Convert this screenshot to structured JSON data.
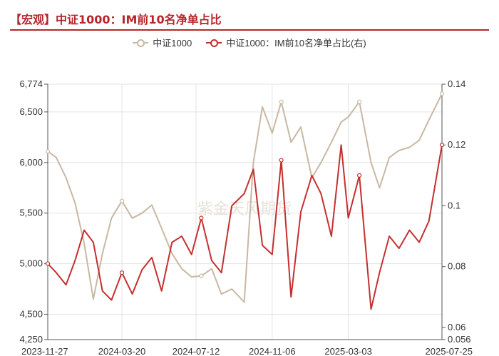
{
  "title": "【宏观】中证1000：IM前10名净单占比",
  "colors": {
    "accent": "#b7262b",
    "series_index": "#c8b8a4",
    "series_ratio": "#c62f2f"
  },
  "legend": [
    {
      "label": "中证1000",
      "color": "#c8b8a4"
    },
    {
      "label": "中证1000：IM前10名净单占比(右)",
      "color": "#c62f2f"
    }
  ],
  "watermark": "紫金天风期货",
  "chart_data": {
    "type": "line",
    "title": "【宏观】中证1000：IM前10名净单占比",
    "x_range": [
      "2023-11-27",
      "2025-07-25"
    ],
    "x_ticks": [
      "2023-11-27",
      "2024-03-20",
      "2024-07-12",
      "2024-11-06",
      "2025-03-03",
      "2025-07-25"
    ],
    "y_left": {
      "min": 4250,
      "max": 6774,
      "ticks": [
        4250,
        4500,
        5000,
        5500,
        6000,
        6500,
        6774
      ],
      "tick_labels": [
        "4,250",
        "4,500",
        "5,000",
        "5,500",
        "6,000",
        "6,500",
        "6,774"
      ]
    },
    "y_right": {
      "min": 0.056,
      "max": 0.14,
      "ticks": [
        0.056,
        0.06,
        0.08,
        0.1,
        0.12,
        0.14
      ],
      "tick_labels": [
        "0.056",
        "0.06",
        "0.08",
        "0.1",
        "0.12",
        "0.14"
      ]
    },
    "grid": true,
    "series": [
      {
        "name": "中证1000",
        "axis": "left",
        "color": "#c8b8a4",
        "x": [
          "2023-11-27",
          "2023-12-10",
          "2023-12-25",
          "2024-01-08",
          "2024-01-22",
          "2024-02-05",
          "2024-02-19",
          "2024-03-04",
          "2024-03-20",
          "2024-04-05",
          "2024-04-20",
          "2024-05-05",
          "2024-05-20",
          "2024-06-05",
          "2024-06-20",
          "2024-07-05",
          "2024-07-20",
          "2024-08-05",
          "2024-08-20",
          "2024-09-05",
          "2024-09-24",
          "2024-10-08",
          "2024-10-22",
          "2024-11-06",
          "2024-11-20",
          "2024-12-05",
          "2024-12-20",
          "2025-01-06",
          "2025-01-20",
          "2025-02-05",
          "2025-02-20",
          "2025-03-03",
          "2025-03-20",
          "2025-04-07",
          "2025-04-20",
          "2025-05-05",
          "2025-05-20",
          "2025-06-05",
          "2025-06-20",
          "2025-07-05",
          "2025-07-25"
        ],
        "values": [
          6110,
          6050,
          5850,
          5600,
          5200,
          4650,
          5100,
          5450,
          5620,
          5450,
          5500,
          5580,
          5350,
          5100,
          4950,
          4870,
          4880,
          4950,
          4700,
          4750,
          4620,
          6000,
          6550,
          6290,
          6600,
          6200,
          6350,
          5850,
          6000,
          6200,
          6400,
          6450,
          6600,
          6000,
          5750,
          6050,
          6120,
          6150,
          6220,
          6420,
          6680
        ]
      },
      {
        "name": "中证1000：IM前10名净单占比(右)",
        "axis": "right",
        "color": "#c62f2f",
        "x": [
          "2023-11-27",
          "2023-12-10",
          "2023-12-25",
          "2024-01-08",
          "2024-01-22",
          "2024-02-05",
          "2024-02-19",
          "2024-03-04",
          "2024-03-20",
          "2024-04-05",
          "2024-04-20",
          "2024-05-05",
          "2024-05-20",
          "2024-06-05",
          "2024-06-20",
          "2024-07-05",
          "2024-07-20",
          "2024-08-05",
          "2024-08-20",
          "2024-09-05",
          "2024-09-24",
          "2024-10-08",
          "2024-10-22",
          "2024-11-06",
          "2024-11-20",
          "2024-12-05",
          "2024-12-20",
          "2025-01-06",
          "2025-01-20",
          "2025-02-05",
          "2025-02-20",
          "2025-03-03",
          "2025-03-20",
          "2025-04-07",
          "2025-04-20",
          "2025-05-05",
          "2025-05-20",
          "2025-06-05",
          "2025-06-20",
          "2025-07-05",
          "2025-07-25"
        ],
        "values": [
          0.081,
          0.078,
          0.074,
          0.082,
          0.092,
          0.088,
          0.072,
          0.069,
          0.078,
          0.071,
          0.079,
          0.083,
          0.072,
          0.088,
          0.09,
          0.084,
          0.096,
          0.082,
          0.078,
          0.1,
          0.104,
          0.112,
          0.087,
          0.084,
          0.115,
          0.07,
          0.098,
          0.11,
          0.104,
          0.09,
          0.12,
          0.096,
          0.11,
          0.066,
          0.078,
          0.09,
          0.086,
          0.092,
          0.088,
          0.095,
          0.12
        ]
      }
    ]
  }
}
